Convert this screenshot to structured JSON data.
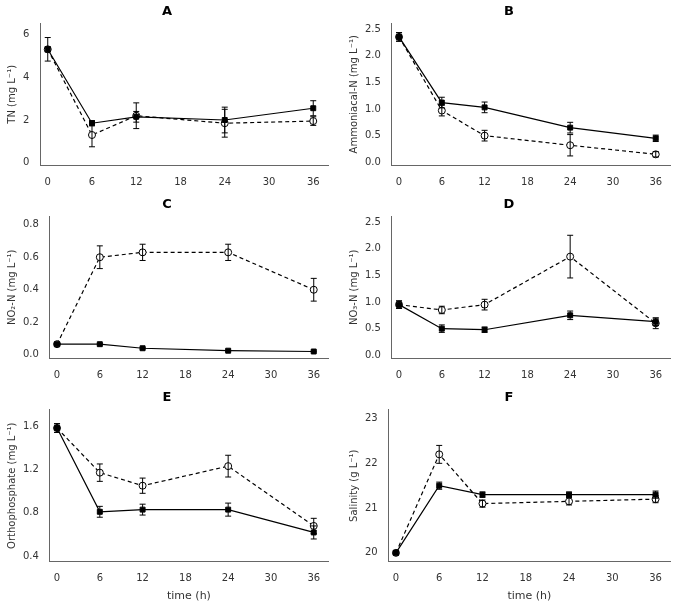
{
  "chart_data": [
    {
      "type": "line",
      "title": "A",
      "ylabel": "TN (mg L⁻¹)",
      "x": [
        0,
        6,
        12,
        24,
        36
      ],
      "xlim": [
        -1,
        38
      ],
      "xticks": [
        0,
        6,
        12,
        18,
        24,
        30,
        36
      ],
      "ylim": [
        -0.1,
        6.5
      ],
      "yticks": [
        0,
        2,
        4,
        6
      ],
      "grid": false,
      "series": [
        {
          "color": "#000000",
          "marker": "circle",
          "line_style": "dashed",
          "values": [
            5.3,
            1.3,
            2.2,
            1.85,
            1.95
          ],
          "yerr": [
            0.55,
            0.55,
            0.6,
            0.65,
            0.2
          ]
        },
        {
          "color": "#000000",
          "marker": "square",
          "line_style": "solid",
          "values": [
            5.3,
            1.85,
            2.15,
            2.0,
            2.55
          ],
          "yerr": [
            0.12,
            0.12,
            0.25,
            0.6,
            0.35
          ]
        }
      ]
    },
    {
      "type": "line",
      "title": "B",
      "ylabel": "Ammoniacal-N (mg L⁻¹)",
      "x": [
        0,
        6,
        12,
        24,
        36
      ],
      "xlim": [
        -1,
        38
      ],
      "xticks": [
        0,
        6,
        12,
        18,
        24,
        30,
        36
      ],
      "ylim": [
        -0.05,
        2.6
      ],
      "yticks": [
        {
          "value": 0,
          "label": "0.0"
        },
        0.5,
        {
          "value": 1,
          "label": "1.0"
        },
        1.5,
        {
          "value": 2,
          "label": "2.0"
        },
        2.5
      ],
      "grid": false,
      "series": [
        {
          "color": "#000000",
          "marker": "circle",
          "line_style": "dashed",
          "values": [
            2.35,
            0.97,
            0.5,
            0.32,
            0.15
          ],
          "yerr": [
            0.08,
            0.1,
            0.1,
            0.2,
            0.05
          ]
        },
        {
          "color": "#000000",
          "marker": "square",
          "line_style": "solid",
          "values": [
            2.35,
            1.12,
            1.03,
            0.65,
            0.45
          ],
          "yerr": [
            0.08,
            0.1,
            0.1,
            0.1,
            0.06
          ]
        }
      ]
    },
    {
      "type": "line",
      "title": "C",
      "ylabel": "NO₂-N (mg L⁻¹)",
      "x": [
        0,
        6,
        12,
        24,
        36
      ],
      "xlim": [
        -1,
        38
      ],
      "xticks": [
        0,
        6,
        12,
        18,
        24,
        30,
        36
      ],
      "ylim": [
        -0.02,
        0.85
      ],
      "yticks": [
        {
          "value": 0,
          "label": "0.0"
        },
        0.2,
        0.4,
        0.6,
        0.8
      ],
      "grid": false,
      "series": [
        {
          "color": "#000000",
          "marker": "circle",
          "line_style": "dashed",
          "values": [
            0.065,
            0.6,
            0.63,
            0.63,
            0.4
          ],
          "yerr": [
            0.005,
            0.07,
            0.05,
            0.05,
            0.07
          ]
        },
        {
          "color": "#000000",
          "marker": "square",
          "line_style": "solid",
          "values": [
            0.065,
            0.065,
            0.04,
            0.025,
            0.02
          ],
          "yerr": [
            0.005,
            0.005,
            0.005,
            0.003,
            0.003
          ]
        }
      ]
    },
    {
      "type": "line",
      "title": "D",
      "ylabel": "NO₃-N (mg L⁻¹)",
      "x": [
        0,
        6,
        12,
        24,
        36
      ],
      "xlim": [
        -1,
        38
      ],
      "xticks": [
        0,
        6,
        12,
        18,
        24,
        30,
        36
      ],
      "ylim": [
        -0.05,
        2.6
      ],
      "yticks": [
        {
          "value": 0,
          "label": "0.0"
        },
        0.5,
        {
          "value": 1,
          "label": "1.0"
        },
        1.5,
        {
          "value": 2,
          "label": "2.0"
        },
        2.5
      ],
      "grid": false,
      "series": [
        {
          "color": "#000000",
          "marker": "circle",
          "line_style": "dashed",
          "values": [
            0.95,
            0.85,
            0.95,
            1.85,
            0.6
          ],
          "yerr": [
            0.07,
            0.07,
            0.1,
            0.4,
            0.1
          ]
        },
        {
          "color": "#000000",
          "marker": "square",
          "line_style": "solid",
          "values": [
            0.95,
            0.5,
            0.48,
            0.75,
            0.63
          ],
          "yerr": [
            0.07,
            0.07,
            0.05,
            0.08,
            0.07
          ]
        }
      ]
    },
    {
      "type": "line",
      "title": "E",
      "ylabel": "Orthophosphate (mg L⁻¹)",
      "xlabel": "time (h)",
      "x": [
        0,
        6,
        12,
        24,
        36
      ],
      "xlim": [
        -1,
        38
      ],
      "xticks": [
        0,
        6,
        12,
        18,
        24,
        30,
        36
      ],
      "ylim": [
        0.35,
        1.75
      ],
      "yticks": [
        0.4,
        0.8,
        1.2,
        1.6
      ],
      "grid": false,
      "series": [
        {
          "color": "#000000",
          "marker": "circle",
          "line_style": "dashed",
          "values": [
            1.58,
            1.17,
            1.05,
            1.23,
            0.68
          ],
          "yerr": [
            0.04,
            0.08,
            0.07,
            0.1,
            0.07
          ]
        },
        {
          "color": "#000000",
          "marker": "square",
          "line_style": "solid",
          "values": [
            1.58,
            0.81,
            0.83,
            0.83,
            0.62
          ],
          "yerr": [
            0.04,
            0.05,
            0.05,
            0.06,
            0.06
          ]
        }
      ]
    },
    {
      "type": "line",
      "title": "F",
      "ylabel": "Salinity (g L⁻¹)",
      "xlabel": "time (h)",
      "x": [
        0,
        6,
        12,
        24,
        36
      ],
      "xlim": [
        -1,
        38
      ],
      "xticks": [
        0,
        6,
        12,
        18,
        24,
        30,
        36
      ],
      "ylim": [
        19.8,
        23.2
      ],
      "yticks": [
        20,
        21,
        22,
        23
      ],
      "grid": false,
      "series": [
        {
          "color": "#000000",
          "marker": "circle",
          "line_style": "dashed",
          "values": [
            20.0,
            22.2,
            21.1,
            21.15,
            21.2
          ],
          "yerr": [
            0.04,
            0.2,
            0.08,
            0.08,
            0.08
          ]
        },
        {
          "color": "#000000",
          "marker": "square",
          "line_style": "solid",
          "values": [
            20.0,
            21.5,
            21.3,
            21.3,
            21.3
          ],
          "yerr": [
            0.04,
            0.08,
            0.06,
            0.06,
            0.08
          ]
        }
      ]
    }
  ]
}
